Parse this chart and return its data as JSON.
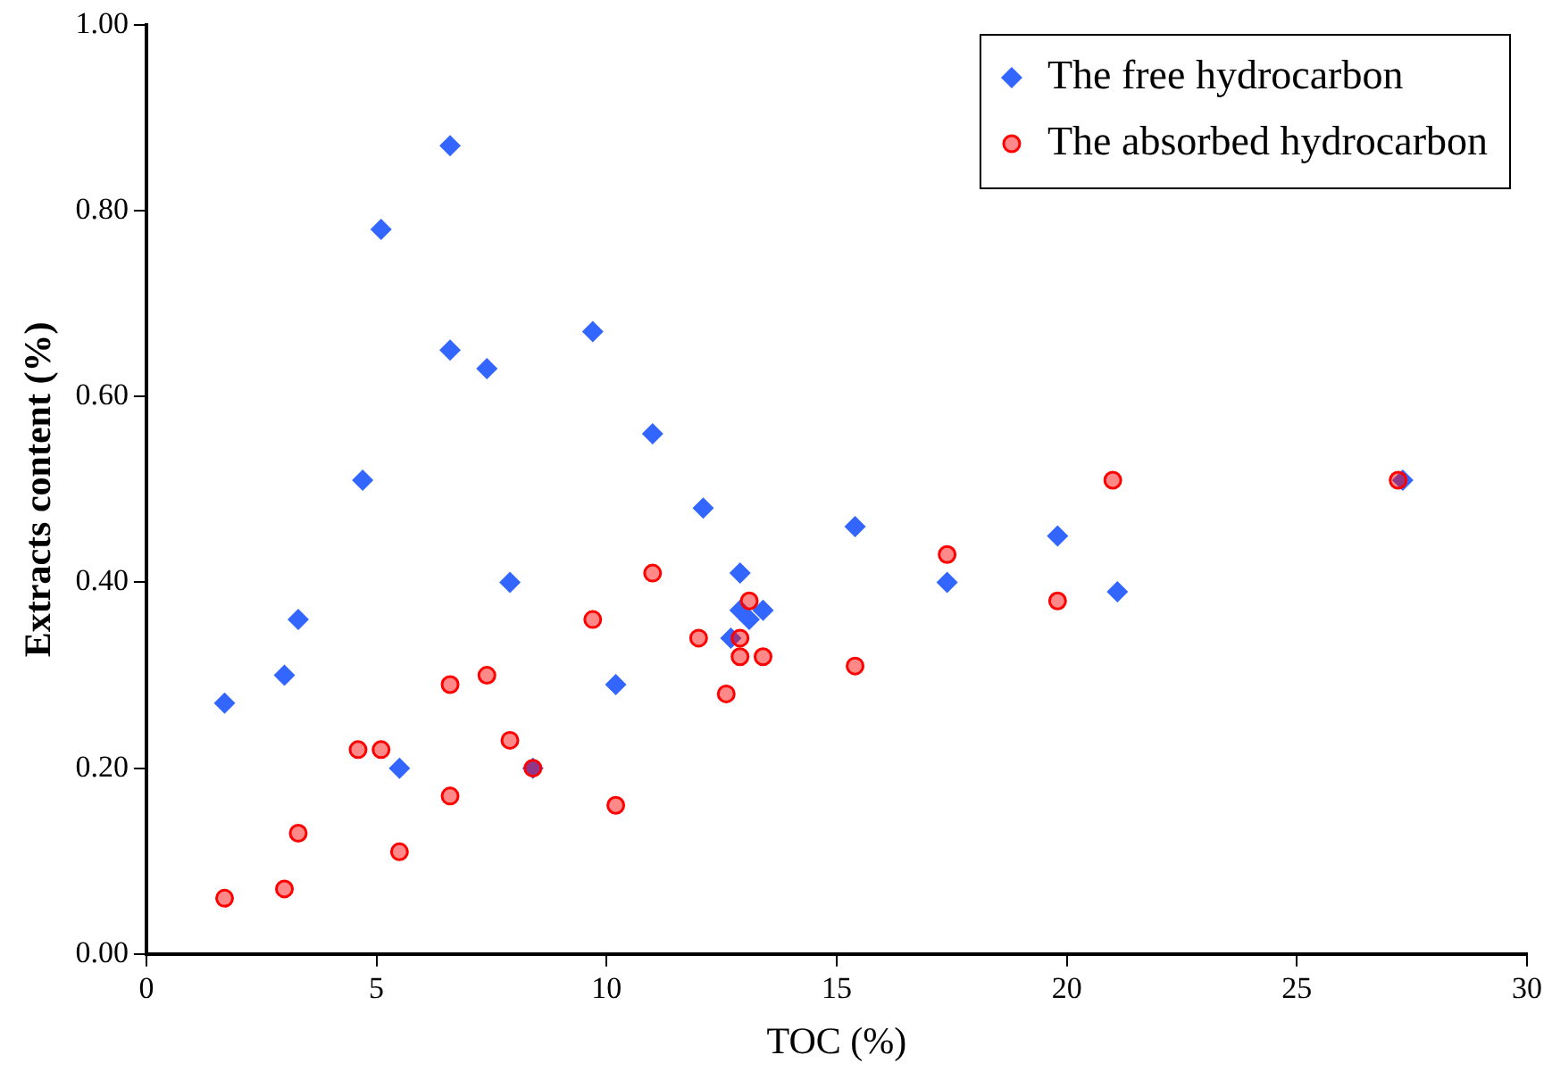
{
  "chart_data": {
    "type": "scatter",
    "xlabel": "TOC (%)",
    "ylabel": "Extracts content (%)",
    "xlim": [
      0,
      30
    ],
    "xticks": [
      0,
      5,
      10,
      15,
      20,
      25,
      30
    ],
    "ylim": [
      0,
      1
    ],
    "yticks": [
      {
        "value": 0,
        "label": "0.00"
      },
      {
        "value": 0.2,
        "label": "0.20"
      },
      {
        "value": 0.4,
        "label": "0.40"
      },
      {
        "value": 0.6,
        "label": "0.60"
      },
      {
        "value": 0.8,
        "label": "0.80"
      },
      {
        "value": 1,
        "label": "1.00"
      }
    ],
    "grid": false,
    "legend": "top right",
    "series": [
      {
        "name": "The free hydrocarbon",
        "color": "#3366ff",
        "marker": "diamond",
        "x": [
          1.7,
          3.0,
          3.3,
          4.7,
          5.1,
          5.5,
          6.6,
          6.6,
          7.4,
          7.9,
          8.4,
          9.7,
          10.2,
          11.0,
          12.1,
          12.7,
          12.9,
          12.9,
          13.1,
          13.4,
          15.4,
          17.4,
          19.8,
          21.1,
          27.3
        ],
        "values": [
          0.27,
          0.3,
          0.36,
          0.51,
          0.78,
          0.2,
          0.87,
          0.65,
          0.63,
          0.4,
          0.2,
          0.67,
          0.29,
          0.56,
          0.48,
          0.34,
          0.41,
          0.37,
          0.36,
          0.37,
          0.46,
          0.4,
          0.45,
          0.39,
          0.51
        ]
      },
      {
        "name": "The absorbed hydrocarbon",
        "color": "#ff0000",
        "marker": "circle",
        "x": [
          1.7,
          3.0,
          3.3,
          4.6,
          5.1,
          5.5,
          6.6,
          6.6,
          7.4,
          7.9,
          8.4,
          9.7,
          10.2,
          11.0,
          12.0,
          12.6,
          12.9,
          12.9,
          13.1,
          13.4,
          15.4,
          17.4,
          19.8,
          21.0,
          27.2
        ],
        "values": [
          0.06,
          0.07,
          0.13,
          0.22,
          0.22,
          0.11,
          0.17,
          0.29,
          0.3,
          0.23,
          0.2,
          0.36,
          0.16,
          0.41,
          0.34,
          0.28,
          0.34,
          0.32,
          0.38,
          0.32,
          0.31,
          0.43,
          0.38,
          0.51,
          0.51
        ]
      }
    ]
  }
}
